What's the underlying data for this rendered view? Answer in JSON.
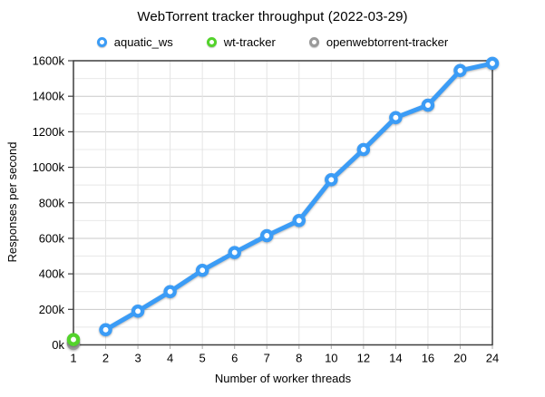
{
  "title": "WebTorrent tracker throughput (2022-03-29)",
  "legend": {
    "items": [
      {
        "label": "aquatic_ws",
        "color": "#3B9CF6"
      },
      {
        "label": "wt-tracker",
        "color": "#53D32B"
      },
      {
        "label": "openwebtorrent-tracker",
        "color": "#9A9A9A"
      }
    ]
  },
  "chart_data": {
    "type": "line",
    "title": "WebTorrent tracker throughput (2022-03-29)",
    "xlabel": "Number of worker threads",
    "ylabel": "Responses per second",
    "x_categories": [
      "1",
      "2",
      "3",
      "4",
      "5",
      "6",
      "7",
      "8",
      "10",
      "12",
      "14",
      "16",
      "20",
      "24"
    ],
    "y_tick_labels": [
      "0k",
      "200k",
      "400k",
      "600k",
      "800k",
      "1000k",
      "1200k",
      "1400k",
      "1600k"
    ],
    "y_tick_step": 200000,
    "y_minor_step": 100000,
    "ylim": [
      0,
      1600000
    ],
    "grid": true,
    "legend_position": "top",
    "series": [
      {
        "name": "aquatic_ws",
        "color": "#3B9CF6",
        "points": [
          [
            "2",
            85000
          ],
          [
            "3",
            190000
          ],
          [
            "4",
            300000
          ],
          [
            "5",
            420000
          ],
          [
            "6",
            520000
          ],
          [
            "7",
            615000
          ],
          [
            "8",
            700000
          ],
          [
            "10",
            930000
          ],
          [
            "12",
            1100000
          ],
          [
            "14",
            1280000
          ],
          [
            "16",
            1350000
          ],
          [
            "20",
            1545000
          ],
          [
            "24",
            1585000
          ]
        ]
      },
      {
        "name": "wt-tracker",
        "color": "#53D32B",
        "points": [
          [
            "1",
            30000
          ]
        ]
      },
      {
        "name": "openwebtorrent-tracker",
        "color": "#9A9A9A",
        "points": [
          [
            "1",
            8000
          ]
        ]
      }
    ]
  },
  "style": {
    "background": "#FFFFFF",
    "major_grid": "#C9C9C9",
    "minor_grid": "#E8E8E8",
    "vertical_grid": "#E4E4E4",
    "axis_frame": "#3D3D3D",
    "tick_color": "#A9A9A9",
    "marker_fill": "#FFFFFF"
  }
}
